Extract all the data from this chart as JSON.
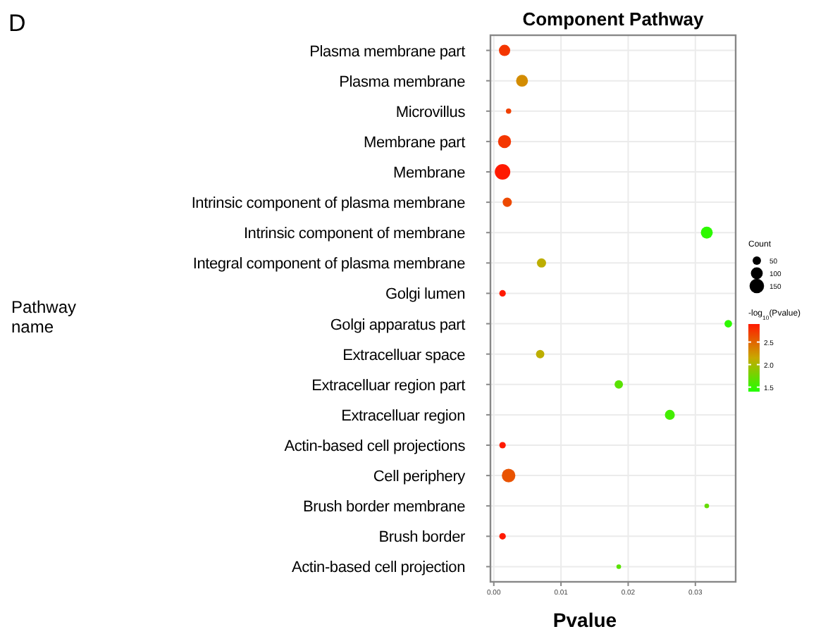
{
  "chart_data": {
    "type": "bubble",
    "title": "Component Pathway",
    "xlabel": "Pvalue",
    "annotations": [
      "D",
      "Pathway name"
    ],
    "categories": [
      "Plasma membrane part",
      "Plasma membrane",
      "Microvillus",
      "Membrane part",
      "Membrane",
      "Intrinsic component of plasma membrane",
      "Intrinsic component of membrane",
      "Integral component of plasma membrane",
      "Golgi lumen",
      "Golgi apparatus part",
      "Extracelluar space",
      "Extracelluar region part",
      "Extracelluar region",
      "Actin-based cell projections",
      "Cell periphery",
      "Brush border membrane",
      "Brush border",
      "Actin-based cell projection"
    ],
    "values": [
      0.0016,
      0.0042,
      0.0022,
      0.0016,
      0.0013,
      0.002,
      0.0317,
      0.0071,
      0.0013,
      0.0349,
      0.0069,
      0.0186,
      0.0262,
      0.0013,
      0.0022,
      0.0317,
      0.0013,
      0.0186
    ],
    "sizes": [
      90,
      100,
      20,
      120,
      170,
      60,
      100,
      60,
      30,
      40,
      50,
      50,
      70,
      30,
      130,
      15,
      30,
      15
    ],
    "orientation": "horizontal",
    "size_legend": [
      {
        "value": 50,
        "label": "50"
      },
      {
        "value": 100,
        "label": "100"
      },
      {
        "value": 150,
        "label": "150"
      }
    ],
    "legend_title": "Count",
    "cvalues": [
      2.75,
      2.3,
      2.7,
      2.75,
      2.9,
      2.65,
      1.45,
      2.1,
      2.9,
      1.45,
      2.1,
      1.65,
      1.55,
      2.9,
      2.6,
      1.7,
      2.9,
      1.65
    ],
    "clabel": "-log$_{10}$(Pvalue)",
    "clim": [
      1.4,
      2.9
    ],
    "cticks": [
      {
        "value": 1.5,
        "label": "1.5"
      },
      {
        "value": 2,
        "label": "2.0"
      },
      {
        "value": 2.5,
        "label": "2.5"
      }
    ],
    "xlim": [
      -0.0005,
      0.036
    ],
    "xticks": [
      {
        "value": 0,
        "label": "0.00"
      },
      {
        "value": 0.01,
        "label": "0.01"
      },
      {
        "value": 0.02,
        "label": "0.02"
      },
      {
        "value": 0.03,
        "label": "0.03"
      }
    ],
    "grid": true,
    "tick_labels": "x"
  }
}
